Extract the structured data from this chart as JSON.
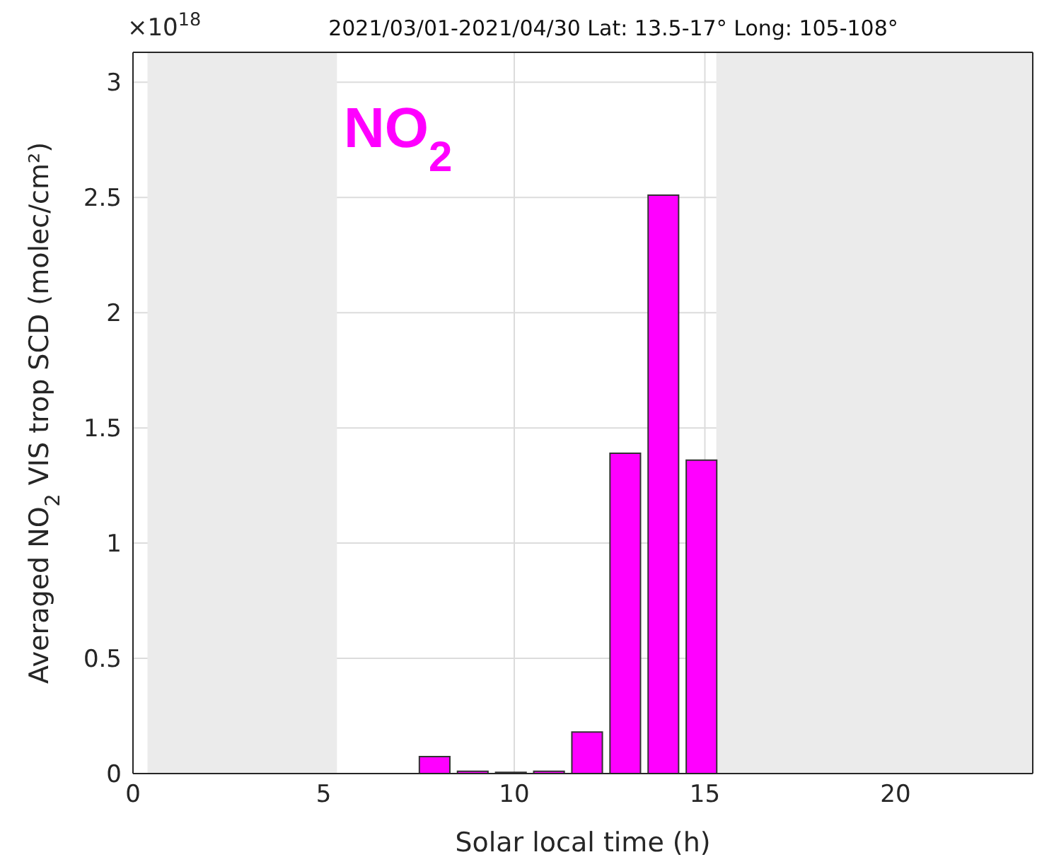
{
  "chart_data": {
    "type": "bar",
    "title": "2021/03/01-2021/04/30 Lat: 13.5-17° Long: 105-108°",
    "xlabel": "Solar local time (h)",
    "ylabel": "Averaged NO$_{2}$ VIS trop SCD (molec/cm²)",
    "annotations": [
      "×10$^{18}$",
      "NO$_{2}$"
    ],
    "x": [
      7.9,
      8.9,
      9.9,
      10.9,
      11.9,
      12.9,
      13.9,
      14.9
    ],
    "values": [
      0.074,
      0.01,
      0.005,
      0.01,
      0.18,
      1.39,
      2.51,
      1.36
    ],
    "color": "#ff00ff",
    "xlim": [
      0,
      23.6
    ],
    "xticks": [
      0,
      5,
      10,
      15,
      20
    ],
    "ylim": [
      0,
      3.13
    ],
    "yticks": [
      0,
      0.5,
      1,
      1.5,
      2,
      2.5,
      3
    ],
    "grid": true,
    "legend": false,
    "bands": [
      {
        "axis": "x",
        "from": 0.38,
        "to": 5.35,
        "color": "#ebebeb"
      },
      {
        "axis": "x",
        "from": 15.3,
        "to": 23.6,
        "color": "#ebebeb"
      }
    ]
  }
}
